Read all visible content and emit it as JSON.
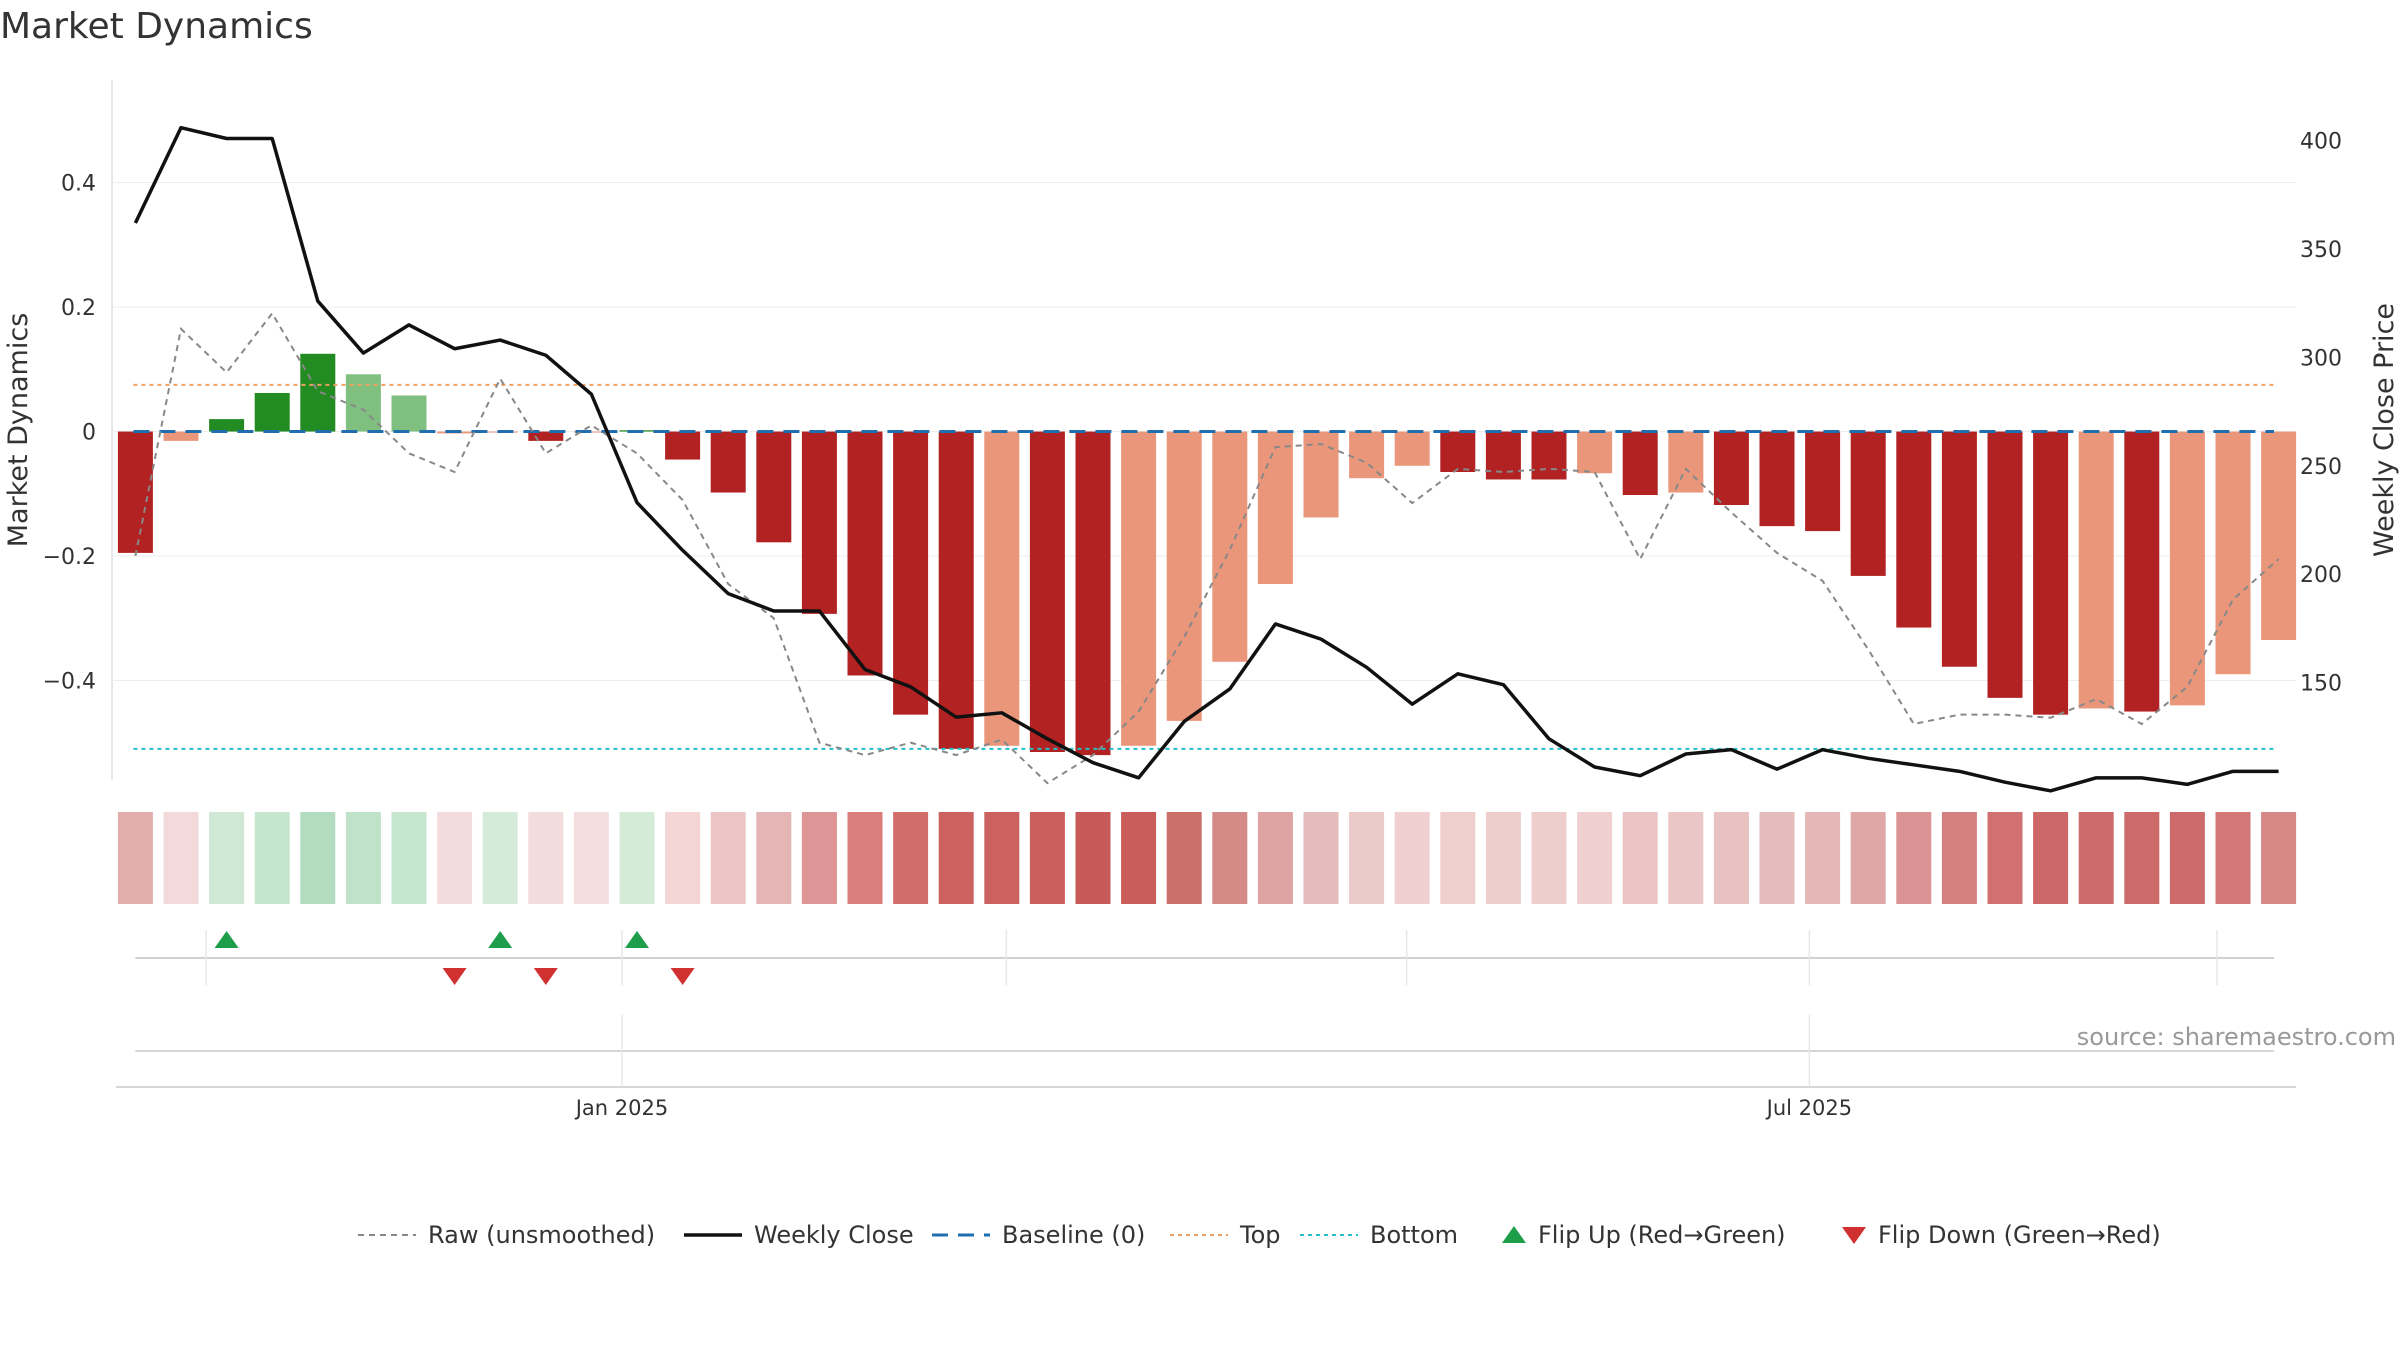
{
  "chart_data": {
    "type": "bar",
    "title": "Market Dynamics",
    "ylabel": "Market Dynamics",
    "y2label": "Weekly Close Price",
    "ylim": [
      -0.56,
      0.565
    ],
    "y2lim": [
      105,
      428
    ],
    "yticks": [
      {
        "value": 0.4,
        "label": "0.4"
      },
      {
        "value": 0.2,
        "label": "0.2"
      },
      {
        "value": 0,
        "label": "0"
      },
      {
        "value": -0.2,
        "label": "−0.2"
      },
      {
        "value": -0.4,
        "label": "−0.4"
      }
    ],
    "y2ticks": [
      {
        "value": 400,
        "label": "400"
      },
      {
        "value": 350,
        "label": "350"
      },
      {
        "value": 300,
        "label": "300"
      },
      {
        "value": 250,
        "label": "250"
      },
      {
        "value": 200,
        "label": "200"
      },
      {
        "value": 150,
        "label": "150"
      }
    ],
    "xticks": [
      {
        "week": 10.67,
        "label": "Jan 2025"
      },
      {
        "week": 36.71,
        "label": "Jul 2025"
      }
    ],
    "minor_ticks": [
      1.55,
      10.67,
      19.1,
      27.88,
      36.71,
      45.65
    ],
    "top_line": 0.075,
    "bottom_line": -0.51,
    "baseline": 0,
    "weeks": 48,
    "bar_values": [
      -0.195,
      -0.015,
      0.02,
      0.062,
      0.125,
      0.092,
      0.058,
      -0.003,
      0,
      -0.015,
      0,
      0.002,
      -0.045,
      -0.098,
      -0.178,
      -0.293,
      -0.392,
      -0.455,
      -0.51,
      -0.505,
      -0.515,
      -0.52,
      -0.505,
      -0.465,
      -0.37,
      -0.245,
      -0.138,
      -0.075,
      -0.055,
      -0.065,
      -0.077,
      -0.077,
      -0.067,
      -0.102,
      -0.098,
      -0.118,
      -0.152,
      -0.16,
      -0.232,
      -0.315,
      -0.378,
      -0.428,
      -0.455,
      -0.445,
      -0.45,
      -0.44,
      -0.39,
      -0.335
    ],
    "bar_colors": [
      "#b22222",
      "#e9967a",
      "#228b22",
      "#228b22",
      "#228b22",
      "#7fbf7f",
      "#7fbf7f",
      "#e9967a",
      "#e9967a",
      "#b22222",
      "#e9967a",
      "#228b22",
      "#b22222",
      "#b22222",
      "#b22222",
      "#b22222",
      "#b22222",
      "#b22222",
      "#b22222",
      "#e9967a",
      "#b22222",
      "#b22222",
      "#e9967a",
      "#e9967a",
      "#e9967a",
      "#e9967a",
      "#e9967a",
      "#e9967a",
      "#e9967a",
      "#b22222",
      "#b22222",
      "#b22222",
      "#e9967a",
      "#b22222",
      "#e9967a",
      "#b22222",
      "#b22222",
      "#b22222",
      "#b22222",
      "#b22222",
      "#b22222",
      "#b22222",
      "#b22222",
      "#e9967a",
      "#b22222",
      "#e9967a",
      "#e9967a",
      "#e9967a"
    ],
    "strip_colors": [
      "#e2adad",
      "#f3d9d9",
      "#cfe8d5",
      "#c5e5cd",
      "#b3dcbe",
      "#bfe2c8",
      "#c7e6cf",
      "#f4dcdc",
      "#d5ebd9",
      "#f3dcdc",
      "#f4dddd",
      "#d4ebd8",
      "#f3d5d5",
      "#ecc6c6",
      "#e5b5b5",
      "#dd9595",
      "#d87e7b",
      "#d16e6b",
      "#cb6260",
      "#cb6260",
      "#ca5f5c",
      "#c75a58",
      "#c95d5a",
      "#cb6f6b",
      "#d48b88",
      "#dea3a3",
      "#e6bbbb",
      "#edcaca",
      "#efcfcf",
      "#efcece",
      "#efcdcd",
      "#efcdcd",
      "#efcfcf",
      "#eac4c4",
      "#ebc6c6",
      "#e8c1c1",
      "#e6bbbb",
      "#e5b8b8",
      "#e0a7a7",
      "#db9292",
      "#d58080",
      "#d07070",
      "#cd6868",
      "#cd6a6a",
      "#cd6a6a",
      "#cd6b6b",
      "#d27878",
      "#d58886"
    ],
    "raw_values": [
      -0.2,
      0.165,
      0.095,
      0.19,
      0.065,
      0.035,
      -0.035,
      -0.065,
      0.085,
      -0.035,
      0.01,
      -0.035,
      -0.11,
      -0.245,
      -0.3,
      -0.5,
      -0.52,
      -0.5,
      -0.52,
      -0.495,
      -0.565,
      -0.52,
      -0.45,
      -0.33,
      -0.19,
      -0.025,
      -0.02,
      -0.05,
      -0.115,
      -0.06,
      -0.065,
      -0.06,
      -0.065,
      -0.205,
      -0.06,
      -0.13,
      -0.195,
      -0.24,
      -0.35,
      -0.47,
      -0.455,
      -0.455,
      -0.46,
      -0.43,
      -0.47,
      -0.41,
      -0.27,
      -0.205
    ],
    "close_values": [
      362,
      406,
      401,
      401,
      326,
      302,
      315,
      304,
      308,
      301,
      283,
      233,
      211,
      191,
      183,
      183,
      156,
      148,
      134,
      136,
      124,
      113,
      106,
      132,
      147,
      177,
      170,
      157,
      140,
      154,
      149,
      124,
      111,
      107,
      117,
      119,
      110,
      119,
      115,
      112,
      109,
      104,
      100,
      106,
      106,
      103,
      109,
      109
    ],
    "flip_up_weeks": [
      2.0,
      8.0,
      11.0
    ],
    "flip_down_weeks": [
      7.0,
      9.0,
      12.0
    ],
    "series": [
      {
        "name": "Raw (unsmoothed)",
        "color": "#888888"
      },
      {
        "name": "Weekly Close",
        "color": "#111111"
      },
      {
        "name": "Baseline (0)",
        "color": "#1f6fb0"
      },
      {
        "name": "Top",
        "color": "#f0a060"
      },
      {
        "name": "Bottom",
        "color": "#20c0c8"
      },
      {
        "name": "Flip Up (Red→Green)",
        "color": "#1e9e4a"
      },
      {
        "name": "Flip Down (Green→Red)",
        "color": "#d03030"
      }
    ],
    "legend_position": "bottom",
    "grid": true
  },
  "source_text": "source: sharemaestro.com"
}
